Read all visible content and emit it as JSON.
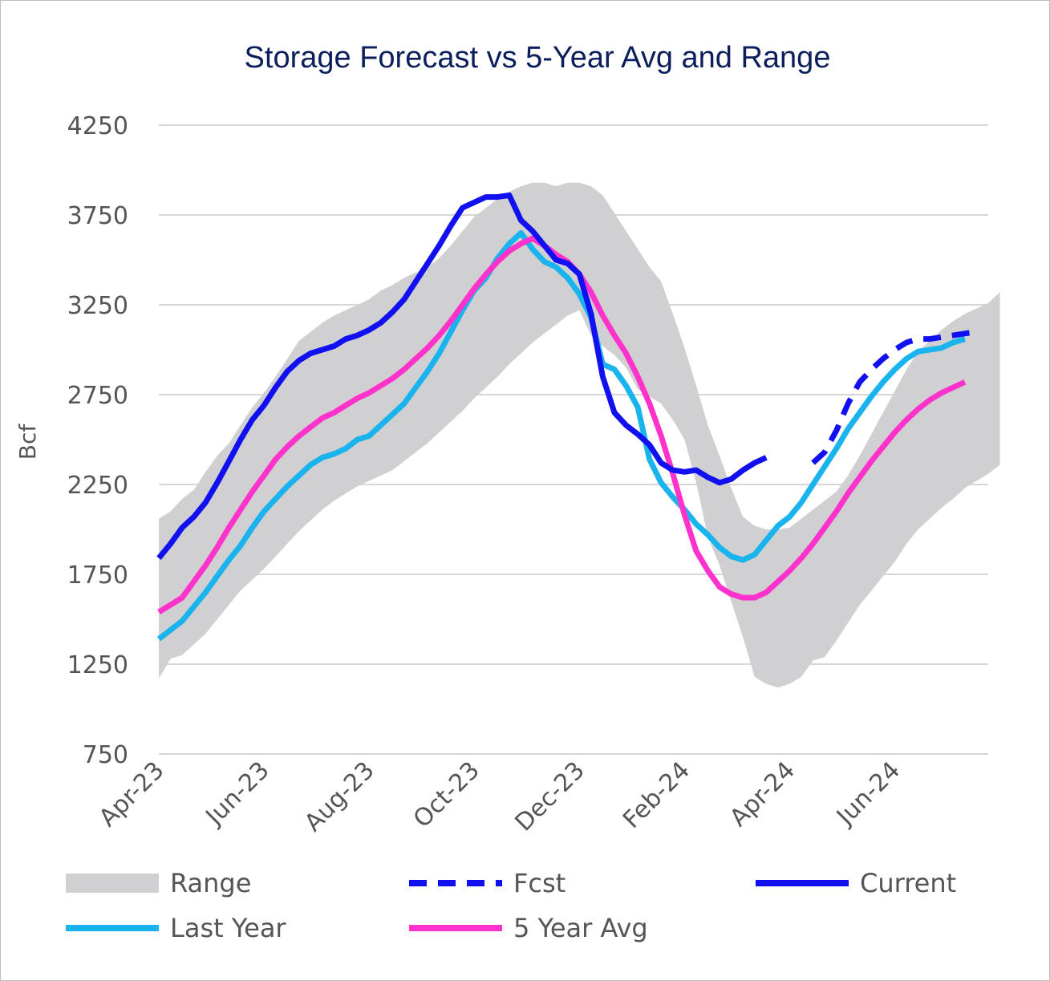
{
  "chart_data": {
    "type": "line",
    "title": "Storage Forecast vs 5-Year Avg and Range",
    "ylabel": "Bcf",
    "xlabel": "",
    "ylim": [
      750,
      4250
    ],
    "y_ticks": [
      4250,
      3750,
      3250,
      2750,
      2250,
      1750,
      1250,
      750
    ],
    "y_tick_labels": [
      "4250",
      "3750",
      "3250",
      "2750",
      "2250",
      "1750",
      "1250",
      "750"
    ],
    "x_tick_labels": [
      "Apr-23",
      "Jun-23",
      "Aug-23",
      "Oct-23",
      "Dec-23",
      "Feb-24",
      "Apr-24",
      "Jun-24"
    ],
    "x_tick_index": [
      0,
      9,
      18,
      27,
      36,
      45,
      54,
      63
    ],
    "n_points": 72,
    "series": [
      {
        "name": "Range",
        "kind": "band",
        "color": "#d0cfd1",
        "points": [
          [
            0,
            1170,
            2060
          ],
          [
            1,
            1280,
            2100
          ],
          [
            2,
            1300,
            2170
          ],
          [
            3,
            1360,
            2220
          ],
          [
            4,
            1420,
            2320
          ],
          [
            5,
            1500,
            2410
          ],
          [
            6,
            1580,
            2480
          ],
          [
            7,
            1660,
            2580
          ],
          [
            8,
            1720,
            2680
          ],
          [
            9,
            1780,
            2760
          ],
          [
            10,
            1850,
            2850
          ],
          [
            11,
            1920,
            2950
          ],
          [
            12,
            1990,
            3050
          ],
          [
            13,
            2050,
            3100
          ],
          [
            14,
            2110,
            3150
          ],
          [
            15,
            2160,
            3190
          ],
          [
            16,
            2200,
            3220
          ],
          [
            17,
            2240,
            3250
          ],
          [
            18,
            2270,
            3280
          ],
          [
            19,
            2300,
            3330
          ],
          [
            20,
            2330,
            3360
          ],
          [
            21,
            2380,
            3400
          ],
          [
            22,
            2430,
            3430
          ],
          [
            23,
            2480,
            3460
          ],
          [
            24,
            2540,
            3510
          ],
          [
            25,
            2600,
            3580
          ],
          [
            26,
            2660,
            3660
          ],
          [
            27,
            2730,
            3740
          ],
          [
            28,
            2790,
            3790
          ],
          [
            29,
            2850,
            3840
          ],
          [
            30,
            2920,
            3880
          ],
          [
            31,
            2980,
            3910
          ],
          [
            32,
            3040,
            3930
          ],
          [
            33,
            3090,
            3930
          ],
          [
            34,
            3140,
            3910
          ],
          [
            35,
            3190,
            3930
          ],
          [
            36,
            3220,
            3930
          ],
          [
            37,
            3080,
            3910
          ],
          [
            38,
            3020,
            3860
          ],
          [
            39,
            2970,
            3760
          ],
          [
            40,
            2900,
            3660
          ],
          [
            41,
            2780,
            3560
          ],
          [
            42,
            2740,
            3460
          ],
          [
            43,
            2700,
            3380
          ],
          [
            44,
            2610,
            3200
          ],
          [
            45,
            2500,
            3010
          ],
          [
            46,
            2260,
            2800
          ],
          [
            47,
            1960,
            2580
          ],
          [
            48,
            1800,
            2410
          ],
          [
            49,
            1600,
            2230
          ],
          [
            50,
            1400,
            2070
          ],
          [
            51,
            1180,
            2020
          ],
          [
            52,
            1140,
            2000
          ],
          [
            53,
            1120,
            2000
          ],
          [
            54,
            1140,
            2010
          ],
          [
            55,
            1180,
            2060
          ],
          [
            56,
            1270,
            2110
          ],
          [
            57,
            1290,
            2160
          ],
          [
            58,
            1380,
            2210
          ],
          [
            59,
            1480,
            2300
          ],
          [
            60,
            1580,
            2410
          ],
          [
            61,
            1660,
            2530
          ],
          [
            62,
            1740,
            2650
          ],
          [
            63,
            1820,
            2770
          ],
          [
            64,
            1920,
            2890
          ],
          [
            65,
            2000,
            2990
          ],
          [
            66,
            2060,
            3050
          ],
          [
            67,
            2120,
            3110
          ],
          [
            68,
            2170,
            3160
          ],
          [
            69,
            2230,
            3200
          ],
          [
            70,
            2270,
            3230
          ],
          [
            71,
            2310,
            3260
          ],
          [
            72,
            2360,
            3320
          ]
        ]
      },
      {
        "name": "Fcst",
        "kind": "line",
        "style": "dashed",
        "color": "#1010f0",
        "points": [
          [
            56,
            2370
          ],
          [
            57,
            2430
          ],
          [
            58,
            2550
          ],
          [
            59,
            2700
          ],
          [
            60,
            2820
          ],
          [
            61,
            2890
          ],
          [
            62,
            2950
          ],
          [
            63,
            3000
          ],
          [
            64,
            3040
          ],
          [
            65,
            3060
          ],
          [
            66,
            3060
          ],
          [
            67,
            3070
          ],
          [
            68,
            3080
          ],
          [
            69,
            3090
          ],
          [
            70,
            3100
          ]
        ]
      },
      {
        "name": "Current",
        "kind": "line",
        "style": "solid",
        "color": "#1010f0",
        "points": [
          [
            0,
            1840
          ],
          [
            1,
            1920
          ],
          [
            2,
            2010
          ],
          [
            3,
            2070
          ],
          [
            4,
            2150
          ],
          [
            5,
            2260
          ],
          [
            6,
            2380
          ],
          [
            7,
            2500
          ],
          [
            8,
            2610
          ],
          [
            9,
            2690
          ],
          [
            10,
            2790
          ],
          [
            11,
            2880
          ],
          [
            12,
            2940
          ],
          [
            13,
            2980
          ],
          [
            14,
            3000
          ],
          [
            15,
            3020
          ],
          [
            16,
            3060
          ],
          [
            17,
            3080
          ],
          [
            18,
            3110
          ],
          [
            19,
            3150
          ],
          [
            20,
            3210
          ],
          [
            21,
            3280
          ],
          [
            22,
            3380
          ],
          [
            23,
            3480
          ],
          [
            24,
            3580
          ],
          [
            25,
            3690
          ],
          [
            26,
            3790
          ],
          [
            27,
            3820
          ],
          [
            28,
            3850
          ],
          [
            29,
            3850
          ],
          [
            30,
            3860
          ],
          [
            31,
            3720
          ],
          [
            32,
            3660
          ],
          [
            33,
            3580
          ],
          [
            34,
            3500
          ],
          [
            35,
            3480
          ],
          [
            36,
            3420
          ],
          [
            37,
            3200
          ],
          [
            38,
            2850
          ],
          [
            39,
            2650
          ],
          [
            40,
            2580
          ],
          [
            41,
            2530
          ],
          [
            42,
            2470
          ],
          [
            43,
            2370
          ],
          [
            44,
            2330
          ],
          [
            45,
            2320
          ],
          [
            46,
            2330
          ],
          [
            47,
            2290
          ],
          [
            48,
            2260
          ],
          [
            49,
            2280
          ],
          [
            50,
            2330
          ],
          [
            51,
            2370
          ],
          [
            52,
            2400
          ]
        ]
      },
      {
        "name": "Last Year",
        "kind": "line",
        "style": "solid",
        "color": "#19b4ee",
        "points": [
          [
            0,
            1390
          ],
          [
            1,
            1440
          ],
          [
            2,
            1490
          ],
          [
            3,
            1570
          ],
          [
            4,
            1650
          ],
          [
            5,
            1740
          ],
          [
            6,
            1830
          ],
          [
            7,
            1910
          ],
          [
            8,
            2010
          ],
          [
            9,
            2100
          ],
          [
            10,
            2170
          ],
          [
            11,
            2240
          ],
          [
            12,
            2300
          ],
          [
            13,
            2360
          ],
          [
            14,
            2400
          ],
          [
            15,
            2420
          ],
          [
            16,
            2450
          ],
          [
            17,
            2500
          ],
          [
            18,
            2520
          ],
          [
            19,
            2580
          ],
          [
            20,
            2640
          ],
          [
            21,
            2700
          ],
          [
            22,
            2790
          ],
          [
            23,
            2880
          ],
          [
            24,
            2980
          ],
          [
            25,
            3100
          ],
          [
            26,
            3220
          ],
          [
            27,
            3330
          ],
          [
            28,
            3400
          ],
          [
            29,
            3510
          ],
          [
            30,
            3590
          ],
          [
            31,
            3650
          ],
          [
            32,
            3560
          ],
          [
            33,
            3490
          ],
          [
            34,
            3460
          ],
          [
            35,
            3400
          ],
          [
            36,
            3310
          ],
          [
            37,
            3180
          ],
          [
            38,
            2920
          ],
          [
            39,
            2890
          ],
          [
            40,
            2800
          ],
          [
            41,
            2680
          ],
          [
            42,
            2390
          ],
          [
            43,
            2260
          ],
          [
            44,
            2180
          ],
          [
            45,
            2110
          ],
          [
            46,
            2030
          ],
          [
            47,
            1970
          ],
          [
            48,
            1900
          ],
          [
            49,
            1850
          ],
          [
            50,
            1830
          ],
          [
            51,
            1860
          ],
          [
            52,
            1940
          ],
          [
            53,
            2020
          ],
          [
            54,
            2070
          ],
          [
            55,
            2150
          ],
          [
            56,
            2250
          ],
          [
            57,
            2350
          ],
          [
            58,
            2450
          ],
          [
            59,
            2560
          ],
          [
            60,
            2650
          ],
          [
            61,
            2740
          ],
          [
            62,
            2820
          ],
          [
            63,
            2890
          ],
          [
            64,
            2950
          ],
          [
            65,
            2990
          ],
          [
            66,
            3000
          ],
          [
            67,
            3010
          ],
          [
            68,
            3040
          ],
          [
            69,
            3060
          ]
        ]
      },
      {
        "name": "5 Year Avg",
        "kind": "line",
        "style": "solid",
        "color": "#ff33cc",
        "points": [
          [
            0,
            1540
          ],
          [
            1,
            1580
          ],
          [
            2,
            1620
          ],
          [
            3,
            1710
          ],
          [
            4,
            1800
          ],
          [
            5,
            1900
          ],
          [
            6,
            2010
          ],
          [
            7,
            2110
          ],
          [
            8,
            2210
          ],
          [
            9,
            2300
          ],
          [
            10,
            2390
          ],
          [
            11,
            2460
          ],
          [
            12,
            2520
          ],
          [
            13,
            2570
          ],
          [
            14,
            2620
          ],
          [
            15,
            2650
          ],
          [
            16,
            2690
          ],
          [
            17,
            2730
          ],
          [
            18,
            2760
          ],
          [
            19,
            2800
          ],
          [
            20,
            2840
          ],
          [
            21,
            2890
          ],
          [
            22,
            2950
          ],
          [
            23,
            3010
          ],
          [
            24,
            3080
          ],
          [
            25,
            3160
          ],
          [
            26,
            3250
          ],
          [
            27,
            3340
          ],
          [
            28,
            3420
          ],
          [
            29,
            3490
          ],
          [
            30,
            3550
          ],
          [
            31,
            3590
          ],
          [
            32,
            3620
          ],
          [
            33,
            3580
          ],
          [
            34,
            3530
          ],
          [
            35,
            3490
          ],
          [
            36,
            3420
          ],
          [
            37,
            3320
          ],
          [
            38,
            3190
          ],
          [
            39,
            3080
          ],
          [
            40,
            2980
          ],
          [
            41,
            2850
          ],
          [
            42,
            2700
          ],
          [
            43,
            2520
          ],
          [
            44,
            2310
          ],
          [
            45,
            2080
          ],
          [
            46,
            1880
          ],
          [
            47,
            1770
          ],
          [
            48,
            1680
          ],
          [
            49,
            1640
          ],
          [
            50,
            1620
          ],
          [
            51,
            1620
          ],
          [
            52,
            1650
          ],
          [
            53,
            1710
          ],
          [
            54,
            1770
          ],
          [
            55,
            1840
          ],
          [
            56,
            1920
          ],
          [
            57,
            2010
          ],
          [
            58,
            2100
          ],
          [
            59,
            2200
          ],
          [
            60,
            2290
          ],
          [
            61,
            2380
          ],
          [
            62,
            2460
          ],
          [
            63,
            2540
          ],
          [
            64,
            2610
          ],
          [
            65,
            2670
          ],
          [
            66,
            2720
          ],
          [
            67,
            2760
          ],
          [
            68,
            2790
          ],
          [
            69,
            2820
          ]
        ]
      }
    ],
    "legend": {
      "placement": "bottom",
      "items": [
        {
          "label": "Range",
          "series": "Range"
        },
        {
          "label": "Fcst",
          "series": "Fcst"
        },
        {
          "label": "Current",
          "series": "Current"
        },
        {
          "label": "Last Year",
          "series": "Last Year"
        },
        {
          "label": "5 Year Avg",
          "series": "5 Year Avg"
        }
      ]
    }
  }
}
